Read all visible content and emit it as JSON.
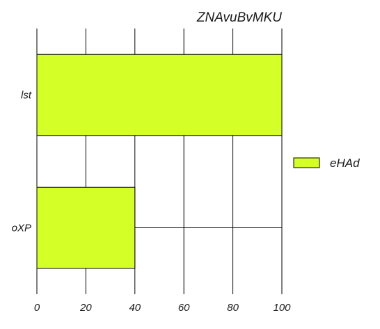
{
  "chart_data": {
    "type": "bar",
    "orientation": "horizontal",
    "title": "ZNAvuBvMKU",
    "xlabel": "",
    "ylabel": "",
    "categories": [
      "lst",
      "oXP"
    ],
    "series": [
      {
        "name": "eHAd",
        "values": [
          100,
          40
        ],
        "color": "#d4ff27"
      }
    ],
    "xlim": [
      0,
      100
    ],
    "xticks": [
      0,
      20,
      40,
      60,
      80,
      100
    ],
    "grid": true,
    "legend_position": "right"
  }
}
